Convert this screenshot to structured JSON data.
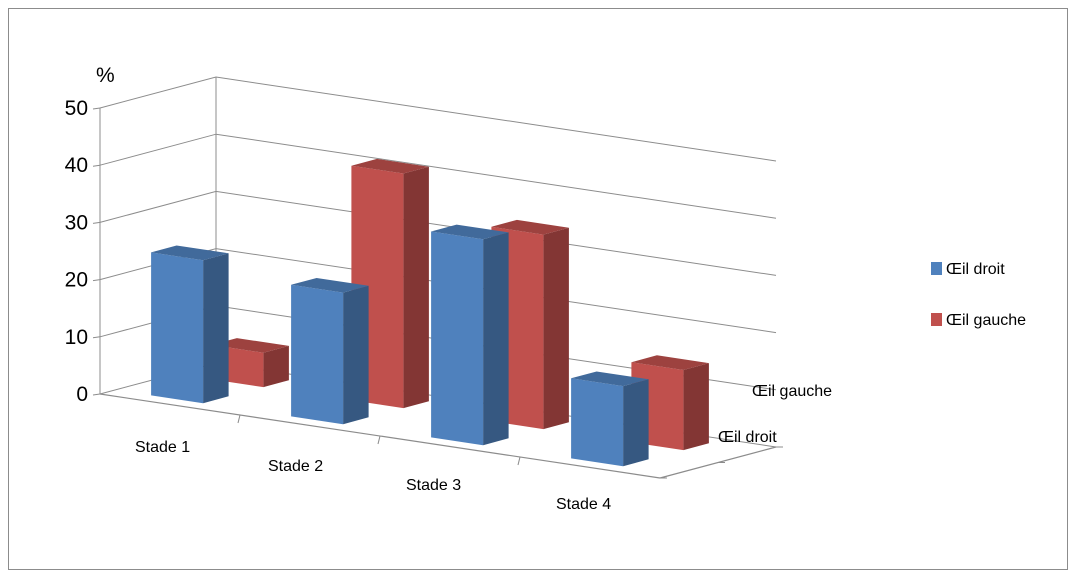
{
  "chart_data": {
    "type": "bar",
    "subtype": "3d-column",
    "ylabel": "%",
    "ylim": [
      0,
      50
    ],
    "yticks": [
      "0",
      "10",
      "20",
      "30",
      "40",
      "50"
    ],
    "categories": [
      "Stade 1",
      "Stade 2",
      "Stade 3",
      "Stade 4"
    ],
    "depth_labels": [
      "Œil droit",
      "Œil gauche"
    ],
    "series": [
      {
        "name": "Œil droit",
        "color": "#4f81bd",
        "values": [
          25,
          23,
          36,
          14
        ]
      },
      {
        "name": "Œil gauche",
        "color": "#c0504d",
        "values": [
          6,
          41,
          34,
          14
        ]
      }
    ],
    "grid": true,
    "legend": "right"
  }
}
